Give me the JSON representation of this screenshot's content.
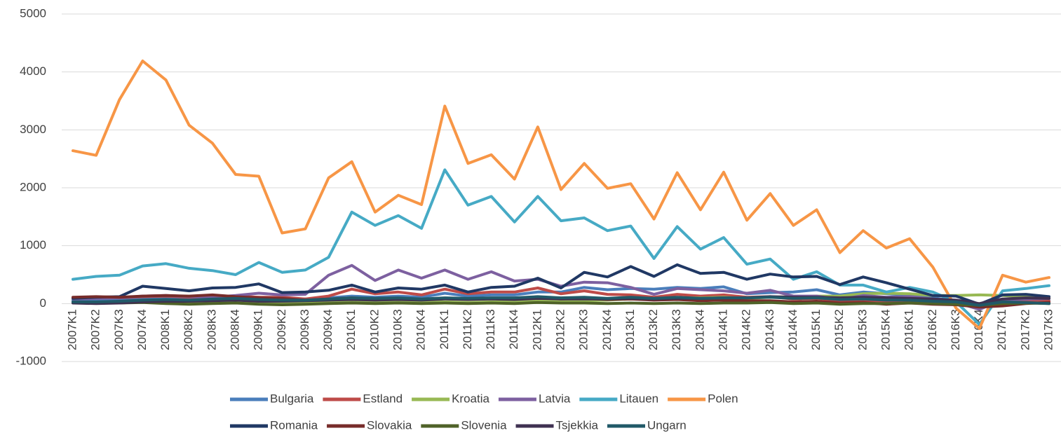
{
  "chart_data": {
    "type": "line",
    "categories": [
      "2007K1",
      "2007K2",
      "2007K3",
      "2007K4",
      "2008K1",
      "2008K2",
      "2008K3",
      "2008K4",
      "2009K1",
      "2009K2",
      "2009K3",
      "2009K4",
      "2010K1",
      "2010K2",
      "2010K3",
      "2010K4",
      "2011K1",
      "2011K2",
      "2011K3",
      "2011K4",
      "2012K1",
      "2012K2",
      "2012K3",
      "2012K4",
      "2013K1",
      "2013K2",
      "2013K3",
      "2013K4",
      "2014K1",
      "2014K2",
      "2014K3",
      "2014K4",
      "2015K1",
      "2015K2",
      "2015K3",
      "2015K4",
      "2016K1",
      "2016K2",
      "2016K3",
      "2016K4",
      "2017K1",
      "2017K2",
      "2017K3"
    ],
    "ylim": [
      -1000,
      5000
    ],
    "yticks": [
      -1000,
      0,
      1000,
      2000,
      3000,
      4000,
      5000
    ],
    "grid": true,
    "legend": "bottom",
    "series": [
      {
        "name": "Bulgaria",
        "color": "#4a7ebb",
        "values": [
          50,
          60,
          60,
          90,
          100,
          80,
          80,
          90,
          110,
          80,
          80,
          100,
          130,
          110,
          130,
          110,
          180,
          130,
          150,
          150,
          200,
          200,
          280,
          240,
          260,
          250,
          280,
          260,
          290,
          170,
          190,
          200,
          240,
          150,
          200,
          170,
          150,
          100,
          50,
          -30,
          70,
          60,
          50
        ]
      },
      {
        "name": "Estland",
        "color": "#be4b48",
        "values": [
          100,
          110,
          100,
          120,
          130,
          110,
          120,
          130,
          110,
          110,
          80,
          130,
          250,
          170,
          200,
          150,
          250,
          170,
          200,
          200,
          270,
          170,
          220,
          160,
          150,
          110,
          160,
          130,
          150,
          110,
          120,
          80,
          90,
          50,
          60,
          40,
          50,
          10,
          -10,
          -20,
          20,
          30,
          40
        ]
      },
      {
        "name": "Kroatia",
        "color": "#98b954",
        "values": [
          20,
          20,
          20,
          30,
          20,
          10,
          20,
          30,
          10,
          0,
          10,
          20,
          30,
          20,
          30,
          20,
          30,
          20,
          30,
          40,
          50,
          40,
          50,
          60,
          80,
          70,
          100,
          100,
          110,
          90,
          110,
          120,
          130,
          130,
          170,
          180,
          170,
          140,
          140,
          150,
          140,
          120,
          100
        ]
      },
      {
        "name": "Latvia",
        "color": "#7d60a0",
        "values": [
          80,
          90,
          100,
          130,
          140,
          120,
          110,
          140,
          180,
          150,
          160,
          490,
          660,
          400,
          580,
          440,
          580,
          420,
          550,
          390,
          420,
          300,
          370,
          360,
          280,
          160,
          260,
          240,
          220,
          180,
          230,
          130,
          130,
          70,
          140,
          110,
          120,
          80,
          20,
          -100,
          70,
          80,
          90
        ]
      },
      {
        "name": "Litauen",
        "color": "#46aac5",
        "values": [
          420,
          470,
          490,
          650,
          690,
          610,
          570,
          500,
          710,
          540,
          580,
          800,
          1580,
          1350,
          1520,
          1300,
          2310,
          1700,
          1850,
          1410,
          1850,
          1430,
          1480,
          1260,
          1340,
          780,
          1330,
          940,
          1140,
          680,
          770,
          420,
          550,
          320,
          320,
          200,
          280,
          200,
          30,
          -360,
          220,
          260,
          310
        ]
      },
      {
        "name": "Polen",
        "color": "#f79646",
        "values": [
          2640,
          2560,
          3520,
          4190,
          3860,
          3080,
          2770,
          2230,
          2200,
          1220,
          1290,
          2170,
          2450,
          1580,
          1870,
          1710,
          3410,
          2420,
          2570,
          2150,
          3050,
          1970,
          2420,
          1990,
          2070,
          1460,
          2260,
          1620,
          2270,
          1440,
          1900,
          1350,
          1620,
          880,
          1260,
          960,
          1120,
          630,
          -80,
          -430,
          490,
          370,
          450
        ]
      },
      {
        "name": "Romania",
        "color": "#203864",
        "values": [
          90,
          110,
          120,
          300,
          260,
          220,
          270,
          280,
          340,
          190,
          200,
          230,
          320,
          200,
          270,
          250,
          320,
          200,
          280,
          300,
          440,
          270,
          540,
          460,
          640,
          470,
          670,
          520,
          540,
          420,
          510,
          460,
          470,
          330,
          460,
          360,
          250,
          140,
          130,
          -10,
          150,
          160,
          120
        ]
      },
      {
        "name": "Slovakia",
        "color": "#772c2a",
        "values": [
          110,
          120,
          110,
          130,
          140,
          130,
          150,
          120,
          100,
          90,
          60,
          80,
          100,
          80,
          90,
          70,
          90,
          80,
          90,
          80,
          100,
          80,
          90,
          70,
          80,
          60,
          70,
          50,
          60,
          50,
          50,
          30,
          40,
          10,
          20,
          -10,
          10,
          -10,
          -20,
          -60,
          -40,
          0,
          20
        ]
      },
      {
        "name": "Slovenia",
        "color": "#4f6228",
        "values": [
          20,
          10,
          10,
          20,
          0,
          -10,
          0,
          10,
          -10,
          -20,
          -10,
          0,
          10,
          0,
          10,
          0,
          10,
          0,
          10,
          0,
          20,
          10,
          10,
          0,
          10,
          0,
          10,
          0,
          10,
          10,
          20,
          0,
          10,
          -10,
          0,
          0,
          10,
          0,
          -10,
          -30,
          0,
          10,
          0
        ]
      },
      {
        "name": "Tsjekkia",
        "color": "#3f3151",
        "values": [
          10,
          0,
          10,
          30,
          40,
          40,
          50,
          60,
          40,
          40,
          50,
          60,
          70,
          60,
          70,
          60,
          80,
          70,
          80,
          70,
          90,
          80,
          80,
          80,
          90,
          80,
          90,
          90,
          100,
          100,
          120,
          110,
          110,
          100,
          110,
          100,
          90,
          80,
          60,
          0,
          80,
          100,
          90
        ]
      },
      {
        "name": "Ungarn",
        "color": "#215968",
        "values": [
          30,
          30,
          40,
          60,
          70,
          60,
          80,
          90,
          70,
          60,
          60,
          80,
          100,
          90,
          100,
          80,
          100,
          90,
          100,
          100,
          120,
          100,
          110,
          90,
          110,
          90,
          110,
          90,
          100,
          100,
          110,
          90,
          100,
          70,
          80,
          60,
          60,
          40,
          30,
          -30,
          30,
          20,
          0
        ]
      }
    ]
  }
}
